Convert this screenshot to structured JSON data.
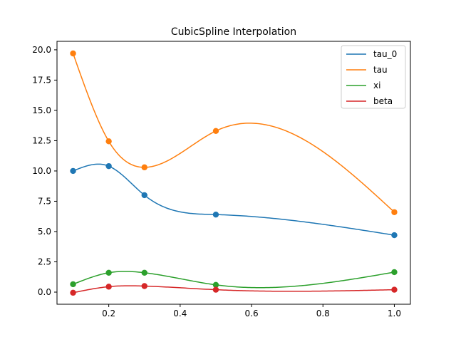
{
  "chart_data": {
    "type": "line",
    "title": "CubicSpline Interpolation",
    "xlabel": "",
    "ylabel": "",
    "xlim": [
      0.055,
      1.045
    ],
    "ylim": [
      -1.0,
      20.7
    ],
    "xticks": [
      0.2,
      0.4,
      0.6,
      0.8,
      1.0
    ],
    "xtick_labels": [
      "0.2",
      "0.4",
      "0.6",
      "0.8",
      "1.0"
    ],
    "yticks": [
      0.0,
      2.5,
      5.0,
      7.5,
      10.0,
      12.5,
      15.0,
      17.5,
      20.0
    ],
    "ytick_labels": [
      "0.0",
      "2.5",
      "5.0",
      "7.5",
      "10.0",
      "12.5",
      "15.0",
      "17.5",
      "20.0"
    ],
    "grid": false,
    "legend_position": "top-right",
    "x": [
      0.1,
      0.2,
      0.3,
      0.5,
      1.0
    ],
    "series": [
      {
        "name": "tau_0",
        "color": "#1f77b4",
        "values": [
          10.0,
          10.4,
          8.0,
          6.4,
          4.7
        ]
      },
      {
        "name": "tau",
        "color": "#ff7f0e",
        "values": [
          19.7,
          12.45,
          10.3,
          13.3,
          6.6
        ]
      },
      {
        "name": "xi",
        "color": "#2ca02c",
        "values": [
          0.65,
          1.6,
          1.6,
          0.6,
          1.65
        ]
      },
      {
        "name": "beta",
        "color": "#d62728",
        "values": [
          -0.05,
          0.45,
          0.5,
          0.2,
          0.2
        ]
      }
    ]
  }
}
